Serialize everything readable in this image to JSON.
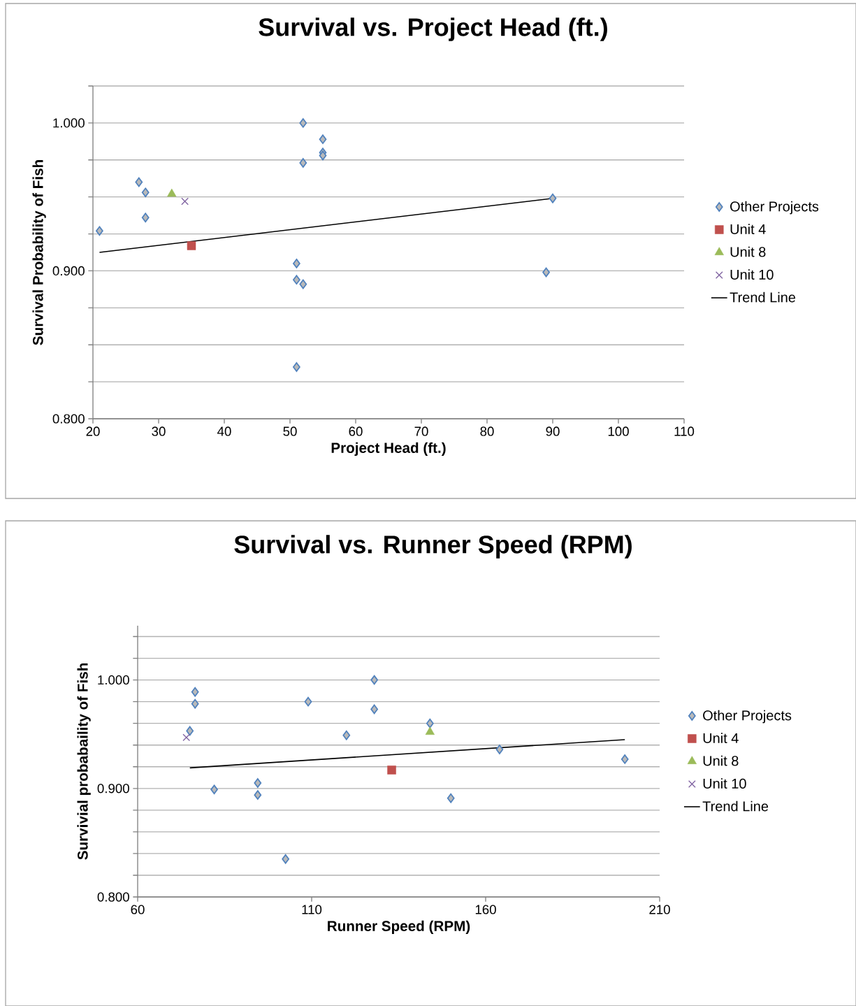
{
  "chart_data": [
    {
      "type": "scatter",
      "title": "Survival vs. Project Head (ft.)",
      "xlabel": "Project Head (ft.)",
      "ylabel": "Survival Probability of Fish",
      "xlim": [
        20,
        110
      ],
      "xticks": [
        20,
        30,
        40,
        50,
        60,
        70,
        80,
        90,
        100,
        110
      ],
      "ylim": [
        0.8,
        1.025
      ],
      "yticks": [
        {
          "value": 0.8,
          "label": "0.800"
        },
        {
          "value": 0.825,
          "label": null
        },
        {
          "value": 0.85,
          "label": null
        },
        {
          "value": 0.875,
          "label": null
        },
        {
          "value": 0.9,
          "label": "0.900"
        },
        {
          "value": 0.925,
          "label": null
        },
        {
          "value": 0.95,
          "label": null
        },
        {
          "value": 0.975,
          "label": null
        },
        {
          "value": 1.0,
          "label": "1.000"
        },
        {
          "value": 1.025,
          "label": null
        }
      ],
      "grid": "y",
      "legend": "right",
      "series": [
        {
          "name": "Other Projects",
          "color": "#4f81bd",
          "marker": "diamond",
          "x": [
            21,
            27,
            28,
            28,
            52,
            55,
            55,
            55,
            52,
            90,
            89,
            51,
            51,
            52,
            51
          ],
          "values": [
            0.927,
            0.96,
            0.953,
            0.936,
            1.0,
            0.989,
            0.98,
            0.978,
            0.973,
            0.949,
            0.899,
            0.905,
            0.894,
            0.891,
            0.835
          ]
        },
        {
          "name": "Unit 4",
          "color": "#c0504d",
          "marker": "square",
          "x": [
            35
          ],
          "values": [
            0.917
          ]
        },
        {
          "name": "Unit 8",
          "color": "#9bbb59",
          "marker": "triangle",
          "x": [
            32
          ],
          "values": [
            0.952
          ]
        },
        {
          "name": "Unit 10",
          "color": "#8064a2",
          "marker": "cross",
          "x": [
            34
          ],
          "values": [
            0.947
          ]
        },
        {
          "name": "Trend Line",
          "type": "line",
          "color": "#000000",
          "marker": "none",
          "x": [
            21,
            90
          ],
          "values": [
            0.9125,
            0.949
          ]
        }
      ]
    },
    {
      "type": "scatter",
      "title": "Survival vs. Runner Speed (RPM)",
      "xlabel": "Runner Speed (RPM)",
      "ylabel": "Survivial probabaility of Fish",
      "xlim": [
        60,
        210
      ],
      "xticks": [
        60,
        110,
        160,
        210
      ],
      "ylim": [
        0.8,
        1.05
      ],
      "yticks": [
        {
          "value": 0.8,
          "label": "0.800"
        },
        {
          "value": 0.82,
          "label": null
        },
        {
          "value": 0.84,
          "label": null
        },
        {
          "value": 0.86,
          "label": null
        },
        {
          "value": 0.88,
          "label": null
        },
        {
          "value": 0.9,
          "label": "0.900"
        },
        {
          "value": 0.92,
          "label": null
        },
        {
          "value": 0.94,
          "label": null
        },
        {
          "value": 0.96,
          "label": null
        },
        {
          "value": 0.98,
          "label": null
        },
        {
          "value": 1.0,
          "label": "1.000"
        },
        {
          "value": 1.02,
          "label": null
        },
        {
          "value": 1.04,
          "label": null
        }
      ],
      "grid": "y",
      "legend": "right",
      "series": [
        {
          "name": "Other Projects",
          "color": "#4f81bd",
          "marker": "diamond",
          "x": [
            76.5,
            76.5,
            75,
            82,
            94.5,
            94.5,
            102.5,
            109,
            120,
            128,
            128,
            144,
            150,
            164,
            200
          ],
          "values": [
            0.989,
            0.978,
            0.953,
            0.899,
            0.905,
            0.894,
            0.835,
            0.98,
            0.949,
            1.0,
            0.973,
            0.96,
            0.891,
            0.936,
            0.927
          ]
        },
        {
          "name": "Unit 4",
          "color": "#c0504d",
          "marker": "square",
          "x": [
            133
          ],
          "values": [
            0.917
          ]
        },
        {
          "name": "Unit 8",
          "color": "#9bbb59",
          "marker": "triangle",
          "x": [
            144
          ],
          "values": [
            0.952
          ]
        },
        {
          "name": "Unit 10",
          "color": "#8064a2",
          "marker": "cross",
          "x": [
            74
          ],
          "values": [
            0.947
          ]
        },
        {
          "name": "Trend Line",
          "type": "line",
          "color": "#000000",
          "marker": "none",
          "x": [
            75,
            200
          ],
          "values": [
            0.919,
            0.945
          ]
        }
      ]
    }
  ]
}
